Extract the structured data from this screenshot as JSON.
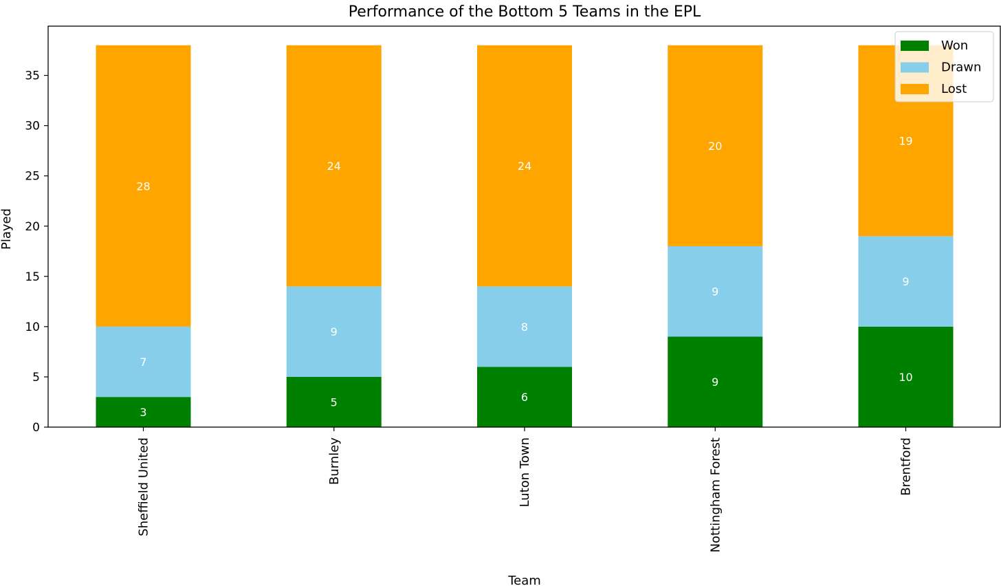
{
  "chart_data": {
    "type": "bar",
    "stacked": true,
    "title": "Performance of the Bottom 5 Teams in the EPL",
    "xlabel": "Team",
    "ylabel": "Played",
    "categories": [
      "Sheffield United",
      "Burnley",
      "Luton Town",
      "Nottingham Forest",
      "Brentford"
    ],
    "series": [
      {
        "name": "Won",
        "values": [
          3,
          5,
          6,
          9,
          10
        ],
        "color": "#008000"
      },
      {
        "name": "Drawn",
        "values": [
          7,
          9,
          8,
          9,
          9
        ],
        "color": "#87ceeb"
      },
      {
        "name": "Lost",
        "values": [
          28,
          24,
          24,
          20,
          19
        ],
        "color": "#ffa500"
      }
    ],
    "ylim": [
      0,
      39.9
    ],
    "yticks": [
      0,
      5,
      10,
      15,
      20,
      25,
      30,
      35
    ],
    "grid": false,
    "legend": "top-right",
    "data_labels": true,
    "label_color": "#ffffff"
  }
}
